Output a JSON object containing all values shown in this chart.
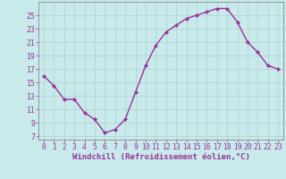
{
  "x": [
    0,
    1,
    2,
    3,
    4,
    5,
    6,
    7,
    8,
    9,
    10,
    11,
    12,
    13,
    14,
    15,
    16,
    17,
    18,
    19,
    20,
    21,
    22,
    23
  ],
  "y": [
    16,
    14.5,
    12.5,
    12.5,
    10.5,
    9.5,
    7.5,
    8.0,
    9.5,
    13.5,
    17.5,
    20.5,
    22.5,
    23.5,
    24.5,
    25.0,
    25.5,
    26.0,
    26.0,
    24.0,
    21.0,
    19.5,
    17.5,
    17.0
  ],
  "line_color": "#993399",
  "marker": "D",
  "marker_size": 2.2,
  "linewidth": 1.0,
  "bg_color": "#c8eaea",
  "grid_color": "#b0d0d0",
  "xlabel": "Windchill (Refroidissement éolien,°C)",
  "xlabel_fontsize": 6.5,
  "ytick_labels": [
    "7",
    "9",
    "11",
    "13",
    "15",
    "17",
    "19",
    "21",
    "23",
    "25"
  ],
  "ytick_values": [
    7,
    9,
    11,
    13,
    15,
    17,
    19,
    21,
    23,
    25
  ],
  "ylim": [
    6.5,
    27.0
  ],
  "xlim": [
    -0.5,
    23.5
  ],
  "xticks": [
    0,
    1,
    2,
    3,
    4,
    5,
    6,
    7,
    8,
    9,
    10,
    11,
    12,
    13,
    14,
    15,
    16,
    17,
    18,
    19,
    20,
    21,
    22,
    23
  ],
  "tick_fontsize": 5.8,
  "tick_color": "#993399",
  "axes_color": "#993399",
  "spine_color": "#888888"
}
